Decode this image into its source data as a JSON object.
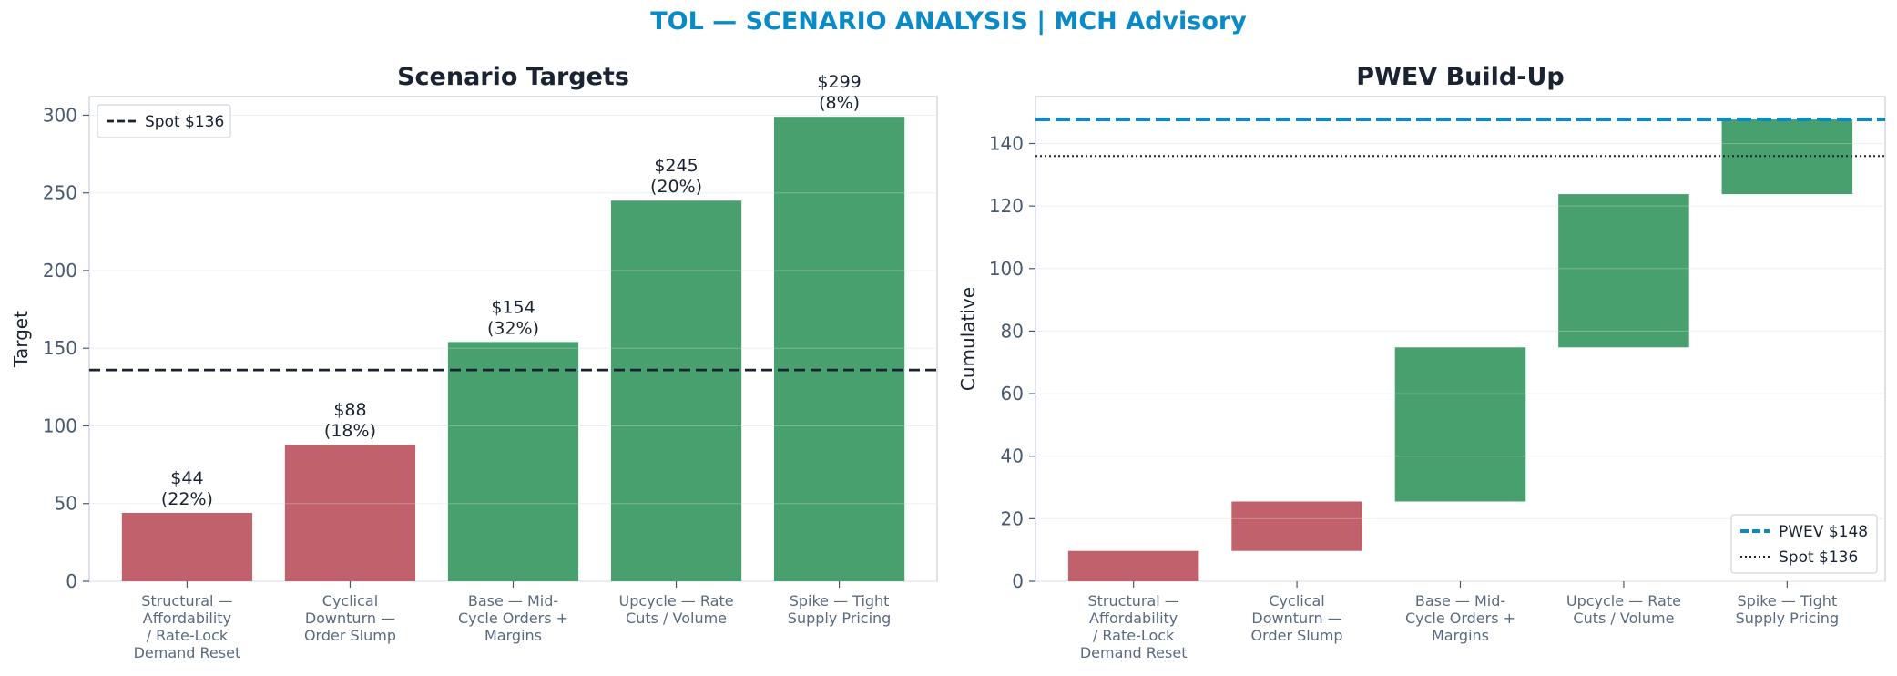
{
  "suptitle": "TOL — SCENARIO ANALYSIS | MCH Advisory",
  "colors": {
    "title": "#0a8bc8",
    "negative": "#c0616b",
    "positive": "#48a06e",
    "spot_line": "#1a2332",
    "pwev_line": "#0a8bc8",
    "tick_text": "#4a5a6e",
    "category_text": "#5a6b80"
  },
  "chart_data": [
    {
      "type": "bar",
      "title": "Scenario Targets",
      "xlabel": "",
      "ylabel": "Target",
      "ylim": [
        0,
        312
      ],
      "yticks": [
        0,
        50,
        100,
        150,
        200,
        250,
        300
      ],
      "categories": [
        [
          "Structural —",
          "Affordability",
          "/ Rate-Lock",
          "Demand Reset"
        ],
        [
          "Cyclical",
          "Downturn —",
          "Order Slump"
        ],
        [
          "Base — Mid-",
          "Cycle Orders +",
          "Margins"
        ],
        [
          "Upcycle — Rate",
          "Cuts / Volume"
        ],
        [
          "Spike — Tight",
          "Supply Pricing"
        ]
      ],
      "values": [
        44,
        88,
        154,
        245,
        299
      ],
      "probabilities": [
        22,
        18,
        32,
        20,
        8
      ],
      "data_labels": [
        [
          "$44",
          "(22%)"
        ],
        [
          "$88",
          "(18%)"
        ],
        [
          "$154",
          "(32%)"
        ],
        [
          "$245",
          "(20%)"
        ],
        [
          "$299",
          "(8%)"
        ]
      ],
      "bar_color": [
        "negative",
        "negative",
        "positive",
        "positive",
        "positive"
      ],
      "reference_lines": [
        {
          "name": "Spot $136",
          "value": 136,
          "style": "dashed",
          "color": "spot_line"
        }
      ],
      "legend": {
        "position": "top-left",
        "entries": [
          "Spot $136"
        ]
      },
      "grid": true
    },
    {
      "type": "bar",
      "subtype": "waterfall",
      "title": "PWEV Build-Up",
      "xlabel": "",
      "ylabel": "Cumulative",
      "ylim": [
        0,
        155
      ],
      "yticks": [
        0,
        20,
        40,
        60,
        80,
        100,
        120,
        140
      ],
      "categories": [
        [
          "Structural —",
          "Affordability",
          "/ Rate-Lock",
          "Demand Reset"
        ],
        [
          "Cyclical",
          "Downturn —",
          "Order Slump"
        ],
        [
          "Base — Mid-",
          "Cycle Orders +",
          "Margins"
        ],
        [
          "Upcycle — Rate",
          "Cuts / Volume"
        ],
        [
          "Spike — Tight",
          "Supply Pricing"
        ]
      ],
      "ranges": [
        [
          0,
          9.7
        ],
        [
          9.7,
          25.5
        ],
        [
          25.5,
          74.8
        ],
        [
          74.8,
          123.8
        ],
        [
          123.8,
          147.7
        ]
      ],
      "bar_color": [
        "negative",
        "negative",
        "positive",
        "positive",
        "positive"
      ],
      "reference_lines": [
        {
          "name": "PWEV $148",
          "value": 147.7,
          "style": "dashed",
          "color": "pwev_line"
        },
        {
          "name": "Spot $136",
          "value": 136,
          "style": "dotted",
          "color": "spot_line"
        }
      ],
      "legend": {
        "position": "bottom-right",
        "entries": [
          "PWEV $148",
          "Spot $136"
        ]
      },
      "grid": true
    }
  ]
}
